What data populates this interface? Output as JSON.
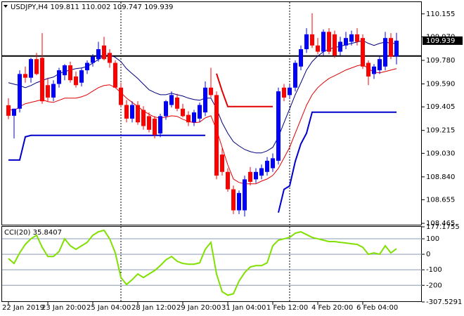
{
  "chart_data": [
    {
      "type": "candlestick",
      "title": "USDJPY,H4  109.811 110.002 109.747 109.939",
      "current_price": 109.939,
      "categories": [
        "22 Jan 2019",
        null,
        null,
        null,
        null,
        null,
        null,
        "23 Jan 20:00",
        null,
        null,
        null,
        null,
        null,
        null,
        null,
        "25 Jan 04:00",
        null,
        null,
        null,
        null,
        null,
        null,
        null,
        "28 Jan 12:00",
        null,
        null,
        null,
        null,
        null,
        null,
        null,
        "29 Jan 20:00",
        null,
        null,
        null,
        null,
        null,
        null,
        null,
        "31 Jan 04:00",
        null,
        null,
        null,
        null,
        null,
        null,
        null,
        "1 Feb 12:00",
        null,
        null,
        null,
        null,
        null,
        null,
        null,
        "4 Feb 20:00",
        null,
        null,
        null,
        null,
        null,
        null,
        null,
        "6 Feb 04:00",
        null,
        null,
        null,
        null,
        null,
        null
      ],
      "open": [
        109.418,
        109.333,
        109.39,
        109.67,
        109.64,
        109.79,
        109.8,
        109.58,
        109.48,
        109.59,
        109.66,
        109.74,
        109.65,
        109.6,
        109.7,
        109.76,
        109.79,
        109.9,
        109.84,
        109.76,
        109.56,
        109.42,
        109.31,
        109.42,
        109.38,
        109.33,
        109.31,
        109.19,
        109.33,
        109.42,
        109.48,
        109.39,
        109.34,
        109.28,
        109.31,
        109.36,
        109.56,
        109.5,
        109.02,
        108.88,
        108.74,
        108.57,
        108.57,
        108.88,
        108.82,
        108.85,
        108.88,
        108.91,
        108.97,
        109.56,
        109.5,
        109.56,
        109.73,
        109.87,
        109.99,
        109.9,
        109.85,
        110.01,
        109.99,
        109.85,
        109.9,
        109.93,
        109.99,
        109.96,
        109.76,
        109.67,
        109.7,
        109.73,
        109.96,
        109.811
      ],
      "high": [
        109.475,
        109.39,
        109.7,
        109.73,
        109.8,
        109.84,
        110.0,
        109.64,
        109.62,
        109.72,
        109.75,
        109.77,
        109.69,
        109.72,
        109.78,
        109.83,
        109.93,
        109.97,
        109.87,
        109.78,
        109.6,
        109.46,
        109.45,
        109.45,
        109.41,
        109.36,
        109.33,
        109.35,
        109.46,
        109.53,
        109.51,
        109.43,
        109.37,
        109.38,
        109.44,
        109.61,
        109.72,
        109.53,
        109.07,
        108.91,
        108.77,
        108.73,
        108.85,
        108.92,
        108.91,
        108.94,
        109.0,
        109.03,
        109.56,
        109.59,
        109.59,
        109.78,
        109.9,
        110.04,
        110.16,
        109.96,
        110.03,
        110.04,
        110.02,
        109.97,
        110.01,
        110.02,
        110.04,
        109.99,
        109.78,
        109.75,
        109.82,
        110.01,
        110.0,
        110.002
      ],
      "low": [
        109.305,
        109.15,
        109.36,
        109.6,
        109.6,
        109.66,
        109.43,
        109.45,
        109.45,
        109.56,
        109.62,
        109.6,
        109.56,
        109.57,
        109.67,
        109.73,
        109.77,
        109.78,
        109.72,
        109.56,
        109.4,
        109.28,
        109.28,
        109.26,
        109.22,
        109.2,
        109.15,
        109.16,
        109.3,
        109.4,
        109.37,
        109.32,
        109.25,
        109.25,
        109.28,
        109.33,
        109.48,
        108.82,
        108.85,
        108.72,
        108.54,
        108.54,
        108.52,
        108.77,
        108.79,
        108.82,
        108.85,
        108.88,
        108.94,
        109.45,
        109.47,
        109.53,
        109.7,
        109.84,
        109.88,
        109.83,
        109.82,
        109.83,
        109.8,
        109.82,
        109.87,
        109.9,
        109.9,
        109.71,
        109.58,
        109.63,
        109.67,
        109.7,
        109.79,
        109.747
      ],
      "close": [
        109.333,
        109.39,
        109.67,
        109.64,
        109.79,
        109.67,
        109.45,
        109.48,
        109.59,
        109.7,
        109.74,
        109.62,
        109.58,
        109.7,
        109.76,
        109.81,
        109.87,
        109.79,
        109.76,
        109.56,
        109.42,
        109.31,
        109.42,
        109.28,
        109.25,
        109.22,
        109.18,
        109.33,
        109.45,
        109.5,
        109.39,
        109.33,
        109.28,
        109.36,
        109.42,
        109.56,
        109.5,
        108.85,
        108.88,
        108.74,
        108.57,
        108.71,
        108.82,
        108.8,
        108.88,
        108.91,
        108.97,
        108.99,
        109.53,
        109.48,
        109.56,
        109.76,
        109.87,
        109.99,
        109.9,
        109.85,
        110.01,
        109.85,
        109.82,
        109.93,
        109.96,
        109.99,
        109.93,
        109.73,
        109.65,
        109.73,
        109.79,
        109.96,
        109.81,
        109.939
      ],
      "up_color": "#0000ff",
      "down_color": "#ff0000",
      "series": [
        {
          "color": "#000080",
          "values": [
            109.6,
            109.588,
            109.577,
            109.56,
            109.577,
            109.6,
            109.617,
            109.634,
            109.645,
            109.673,
            109.69,
            109.702,
            109.713,
            109.719,
            109.73,
            109.758,
            109.787,
            109.815,
            109.826,
            109.804,
            109.77,
            109.713,
            109.673,
            109.634,
            109.588,
            109.543,
            109.52,
            109.503,
            109.503,
            109.515,
            109.503,
            109.492,
            109.475,
            109.464,
            109.458,
            109.475,
            109.475,
            109.39,
            109.277,
            109.192,
            109.124,
            109.09,
            109.061,
            109.044,
            109.033,
            109.033,
            109.05,
            109.078,
            109.163,
            109.277,
            109.39,
            109.503,
            109.6,
            109.702,
            109.77,
            109.815,
            109.849,
            109.872,
            109.883,
            109.894,
            109.906,
            109.917,
            109.928,
            109.94,
            109.917,
            109.9,
            109.917,
            109.928,
            109.917,
            109.917
          ]
        },
        {
          "color": "#e00000",
          "values": [
            109.39,
            109.373,
            109.407,
            109.43,
            109.441,
            109.452,
            109.464,
            109.447,
            109.441,
            109.458,
            109.475,
            109.475,
            109.475,
            109.486,
            109.503,
            109.532,
            109.56,
            109.577,
            109.583,
            109.56,
            109.52,
            109.475,
            109.441,
            109.407,
            109.373,
            109.345,
            109.322,
            109.316,
            109.322,
            109.333,
            109.328,
            109.305,
            109.288,
            109.277,
            109.282,
            109.316,
            109.333,
            109.22,
            109.078,
            108.937,
            108.823,
            108.795,
            108.784,
            108.784,
            108.784,
            108.806,
            108.823,
            108.852,
            108.909,
            108.993,
            109.078,
            109.192,
            109.305,
            109.418,
            109.503,
            109.56,
            109.6,
            109.634,
            109.656,
            109.679,
            109.702,
            109.719,
            109.736,
            109.747,
            109.713,
            109.685,
            109.679,
            109.69,
            109.702,
            109.713
          ]
        },
        {
          "color": "#0000cc",
          "width": 2,
          "values": [
            108.976,
            108.976,
            108.976,
            109.163,
            109.175,
            109.175,
            109.175,
            109.175,
            109.175,
            109.175,
            109.175,
            109.175,
            109.175,
            109.175,
            109.175,
            109.175,
            109.175,
            109.175,
            109.175,
            109.175,
            109.175,
            109.175,
            109.175,
            109.175,
            109.175,
            109.175,
            109.175,
            109.175,
            109.175,
            109.175,
            109.175,
            109.175,
            109.175,
            109.175,
            109.175,
            109.175,
            null,
            null,
            null,
            null,
            null,
            null,
            null,
            null,
            null,
            null,
            null,
            null,
            108.552,
            108.739,
            108.767,
            108.965,
            109.107,
            109.192,
            109.362,
            109.362,
            109.362,
            109.362,
            109.362,
            109.362,
            109.362,
            109.362,
            109.362,
            109.362,
            109.362,
            109.362,
            109.362,
            109.362,
            109.362,
            109.362
          ]
        },
        {
          "color": "#e00000",
          "width": 2,
          "values": [
            null,
            null,
            null,
            null,
            null,
            null,
            null,
            null,
            null,
            null,
            null,
            null,
            null,
            null,
            null,
            null,
            null,
            null,
            null,
            null,
            null,
            null,
            null,
            null,
            null,
            null,
            null,
            null,
            null,
            null,
            null,
            null,
            null,
            null,
            null,
            null,
            null,
            109.673,
            109.532,
            109.407,
            109.407,
            109.407,
            109.407,
            109.407,
            109.407,
            109.407,
            109.407,
            109.407,
            null,
            null,
            null,
            null,
            null,
            null,
            null,
            null,
            null,
            null,
            null,
            null,
            null,
            null,
            null,
            null,
            null,
            null,
            null,
            null,
            null,
            null
          ]
        }
      ],
      "hline": 109.815,
      "ylim": [
        108.454,
        110.25
      ],
      "yticks": [
        110.155,
        {
          "value": 109.97,
          "label": "109.970"
        },
        {
          "value": 109.78,
          "label": "109.780"
        },
        {
          "value": 109.59,
          "label": "109.590"
        },
        109.405,
        109.215,
        {
          "value": 109.03,
          "label": "109.030"
        },
        {
          "value": 108.84,
          "label": "108.840"
        },
        108.655,
        108.465
      ]
    },
    {
      "type": "line",
      "title": "CCI(20) 35.8407",
      "color": "#80e000",
      "values": [
        -27,
        -59,
        9,
        64,
        100,
        123,
        45,
        -14,
        -14,
        18,
        100,
        55,
        32,
        55,
        77,
        123,
        145,
        155,
        100,
        9,
        -150,
        -195,
        -164,
        -127,
        -150,
        -127,
        -105,
        -73,
        -36,
        -14,
        -45,
        -59,
        -64,
        -64,
        -55,
        32,
        77,
        -127,
        -241,
        -264,
        -255,
        -173,
        -118,
        -82,
        -73,
        -73,
        -55,
        55,
        91,
        100,
        109,
        136,
        145,
        127,
        109,
        100,
        91,
        82,
        82,
        77,
        73,
        68,
        64,
        45,
        0,
        9,
        0,
        55,
        9,
        35.8407
      ],
      "ylim": [
        -307.5291,
        177.1755
      ],
      "yticks": [
        177.1755,
        100,
        0,
        -100,
        -200,
        -307.5291
      ]
    }
  ]
}
